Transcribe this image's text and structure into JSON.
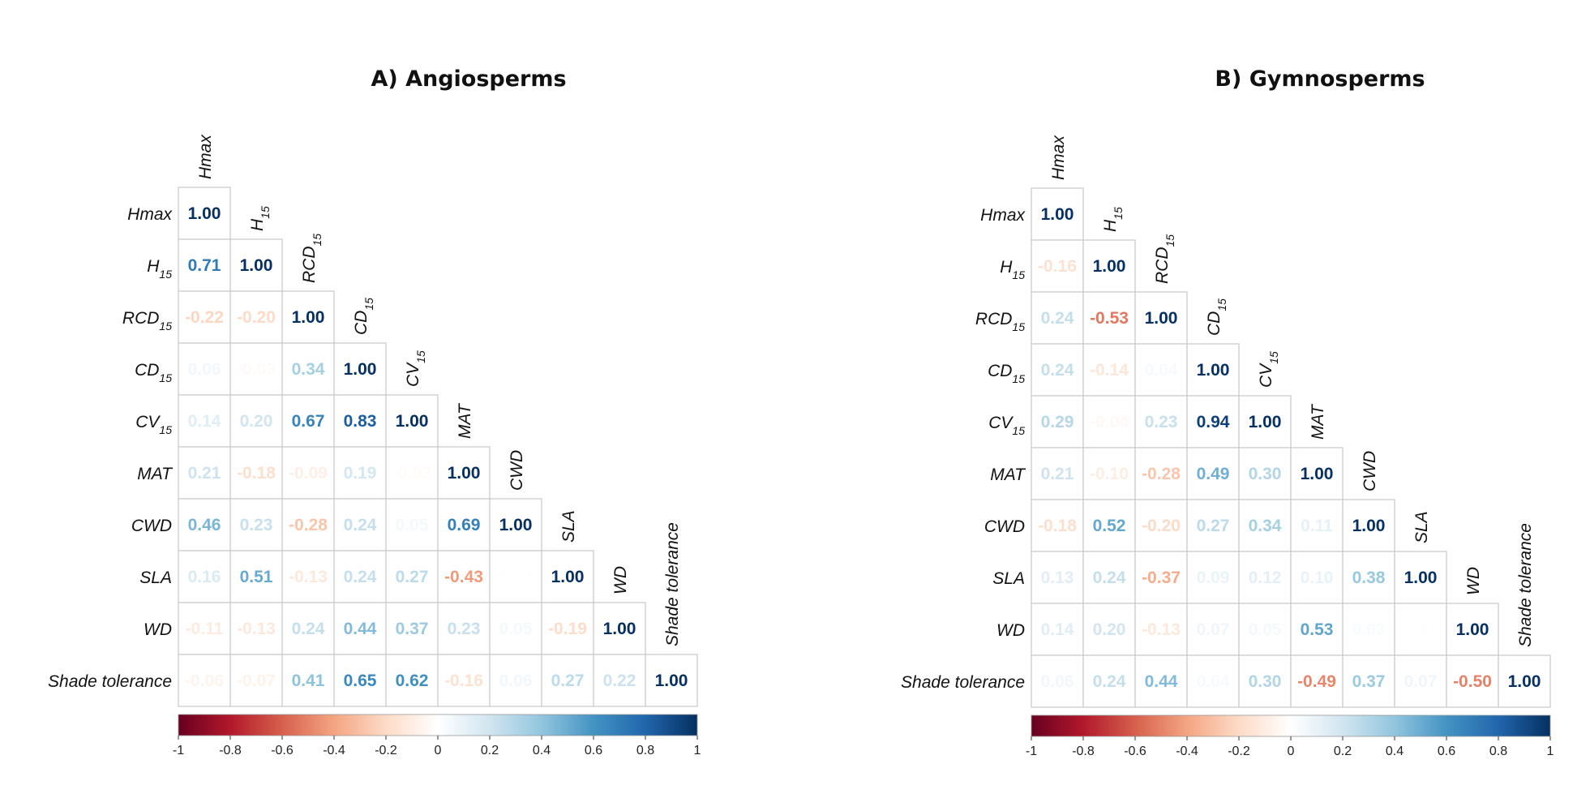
{
  "chart_data": [
    {
      "type": "heatmap",
      "title": "A) Angiosperms",
      "variables": [
        "Hmax",
        "H|15",
        "RCD|15",
        "CD|15",
        "CV|15",
        "MAT",
        "CWD",
        "SLA",
        "WD",
        "Shade tolerance"
      ],
      "matrix_lower": [
        [
          1.0
        ],
        [
          0.71,
          1.0
        ],
        [
          -0.22,
          -0.2,
          1.0
        ],
        [
          0.06,
          -0.03,
          0.34,
          1.0
        ],
        [
          0.14,
          0.2,
          0.67,
          0.83,
          1.0
        ],
        [
          0.21,
          -0.18,
          -0.09,
          0.19,
          -0.02,
          1.0
        ],
        [
          0.46,
          0.23,
          -0.28,
          0.24,
          0.05,
          0.69,
          1.0
        ],
        [
          0.16,
          0.51,
          -0.13,
          0.24,
          0.27,
          -0.43,
          0.01,
          1.0
        ],
        [
          -0.11,
          -0.13,
          0.24,
          0.44,
          0.37,
          0.23,
          0.05,
          -0.19,
          1.0
        ],
        [
          -0.06,
          -0.07,
          0.41,
          0.65,
          0.62,
          -0.16,
          0.06,
          0.27,
          0.22,
          1.0
        ]
      ],
      "colorbar": {
        "range": [
          -1,
          1
        ],
        "ticks": [
          "-1",
          "-0.8",
          "-0.6",
          "-0.4",
          "-0.2",
          "0",
          "0.2",
          "0.4",
          "0.6",
          "0.8",
          "1"
        ]
      }
    },
    {
      "type": "heatmap",
      "title": "B) Gymnosperms",
      "variables": [
        "Hmax",
        "H|15",
        "RCD|15",
        "CD|15",
        "CV|15",
        "MAT",
        "CWD",
        "SLA",
        "WD",
        "Shade tolerance"
      ],
      "matrix_lower": [
        [
          1.0
        ],
        [
          -0.16,
          1.0
        ],
        [
          0.24,
          -0.53,
          1.0
        ],
        [
          0.24,
          -0.14,
          0.04,
          1.0
        ],
        [
          0.29,
          -0.04,
          0.23,
          0.94,
          1.0
        ],
        [
          0.21,
          -0.1,
          -0.28,
          0.49,
          0.3,
          1.0
        ],
        [
          -0.18,
          0.52,
          -0.2,
          0.27,
          0.34,
          0.11,
          1.0
        ],
        [
          0.13,
          0.24,
          -0.37,
          0.09,
          0.12,
          0.1,
          0.38,
          1.0
        ],
        [
          0.14,
          0.2,
          -0.13,
          0.07,
          0.05,
          0.53,
          0.03,
          0.01,
          1.0
        ],
        [
          0.06,
          0.24,
          0.44,
          0.04,
          0.3,
          -0.49,
          0.37,
          0.07,
          -0.5,
          1.0
        ]
      ],
      "colorbar": {
        "range": [
          -1,
          1
        ],
        "ticks": [
          "-1",
          "-0.8",
          "-0.6",
          "-0.4",
          "-0.2",
          "0",
          "0.2",
          "0.4",
          "0.6",
          "0.8",
          "1"
        ]
      }
    }
  ],
  "colors": {
    "strong_negative": "#67001f",
    "negative": "#d6604d",
    "neutral": "#f7f7f7",
    "positive": "#4393c3",
    "strong_positive": "#053061",
    "grid_line": "#c8c8c8"
  }
}
